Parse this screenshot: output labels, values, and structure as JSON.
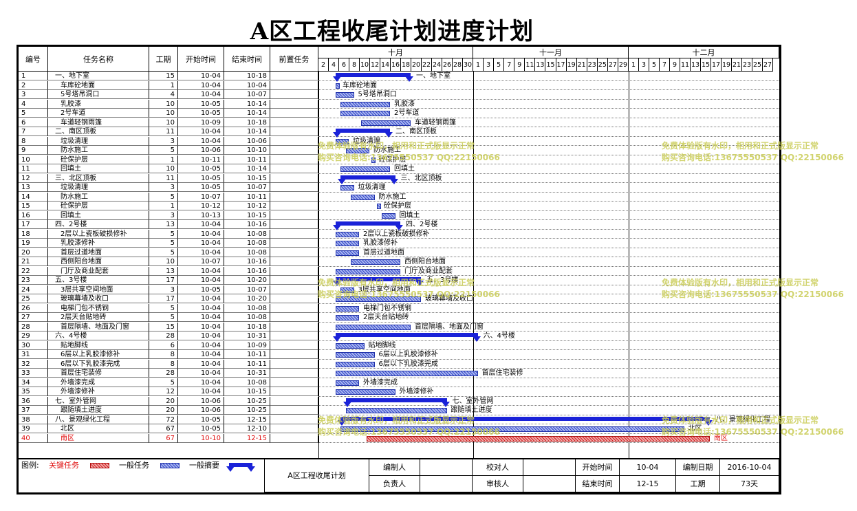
{
  "title": "A区工程收尾计划进度计划",
  "headers": {
    "id": "编号",
    "name": "任务名称",
    "duration": "工期",
    "start": "开始时间",
    "end": "结束时间",
    "pred": "前置任务"
  },
  "months": [
    "十月",
    "十一月",
    "十二月"
  ],
  "days": {
    "oct": [
      "2",
      "4",
      "6",
      "8",
      "10",
      "12",
      "14",
      "16",
      "18",
      "20",
      "22",
      "24",
      "26",
      "28",
      "30"
    ],
    "nov": [
      "1",
      "3",
      "5",
      "7",
      "9",
      "11",
      "13",
      "15",
      "17",
      "19",
      "21",
      "23",
      "25",
      "27",
      "29"
    ],
    "dec": [
      "1",
      "3",
      "5",
      "7",
      "9",
      "11",
      "13",
      "15",
      "17",
      "19",
      "21",
      "23",
      "25",
      "27"
    ]
  },
  "tasks": [
    {
      "id": "1",
      "name": "一、地下室",
      "dur": "15",
      "start": "10-04",
      "end": "10-18",
      "type": "summary",
      "s": 4,
      "e": 18
    },
    {
      "id": "2",
      "name": "车库砼地面",
      "dur": "1",
      "start": "10-04",
      "end": "10-04",
      "type": "task",
      "s": 4,
      "e": 4
    },
    {
      "id": "3",
      "name": "5号塔吊洞口",
      "dur": "4",
      "start": "10-04",
      "end": "10-07",
      "type": "task",
      "s": 4,
      "e": 7
    },
    {
      "id": "4",
      "name": "乳胶漆",
      "dur": "10",
      "start": "10-05",
      "end": "10-14",
      "type": "task",
      "s": 5,
      "e": 14
    },
    {
      "id": "5",
      "name": "2号车道",
      "dur": "10",
      "start": "10-05",
      "end": "10-14",
      "type": "task",
      "s": 5,
      "e": 14
    },
    {
      "id": "6",
      "name": "车道轻钢雨篷",
      "dur": "10",
      "start": "10-09",
      "end": "10-18",
      "type": "task",
      "s": 9,
      "e": 18
    },
    {
      "id": "7",
      "name": "二、南区顶板",
      "dur": "11",
      "start": "10-04",
      "end": "10-14",
      "type": "summary",
      "s": 4,
      "e": 14
    },
    {
      "id": "8",
      "name": "垃圾清理",
      "dur": "3",
      "start": "10-04",
      "end": "10-06",
      "type": "task",
      "s": 4,
      "e": 6
    },
    {
      "id": "9",
      "name": "防水施工",
      "dur": "5",
      "start": "10-06",
      "end": "10-10",
      "type": "task",
      "s": 6,
      "e": 10
    },
    {
      "id": "10",
      "name": "砼保护层",
      "dur": "1",
      "start": "10-11",
      "end": "10-11",
      "type": "task",
      "s": 11,
      "e": 11
    },
    {
      "id": "11",
      "name": "回填土",
      "dur": "10",
      "start": "10-05",
      "end": "10-14",
      "type": "task",
      "s": 5,
      "e": 14
    },
    {
      "id": "12",
      "name": "三、北区顶板",
      "dur": "11",
      "start": "10-05",
      "end": "10-15",
      "type": "summary",
      "s": 5,
      "e": 15
    },
    {
      "id": "13",
      "name": "垃圾清理",
      "dur": "3",
      "start": "10-05",
      "end": "10-07",
      "type": "task",
      "s": 5,
      "e": 7
    },
    {
      "id": "14",
      "name": "防水施工",
      "dur": "5",
      "start": "10-07",
      "end": "10-11",
      "type": "task",
      "s": 7,
      "e": 11
    },
    {
      "id": "15",
      "name": "砼保护层",
      "dur": "1",
      "start": "10-12",
      "end": "10-12",
      "type": "task",
      "s": 12,
      "e": 12
    },
    {
      "id": "16",
      "name": "回填土",
      "dur": "3",
      "start": "10-13",
      "end": "10-15",
      "type": "task",
      "s": 13,
      "e": 15
    },
    {
      "id": "17",
      "name": "四、2号楼",
      "dur": "13",
      "start": "10-04",
      "end": "10-16",
      "type": "summary",
      "s": 4,
      "e": 16
    },
    {
      "id": "18",
      "name": "2层以上瓷板破损修补",
      "dur": "5",
      "start": "10-04",
      "end": "10-08",
      "type": "task",
      "s": 4,
      "e": 8
    },
    {
      "id": "19",
      "name": "乳胶漆修补",
      "dur": "5",
      "start": "10-04",
      "end": "10-08",
      "type": "task",
      "s": 4,
      "e": 8
    },
    {
      "id": "20",
      "name": "首层过道地面",
      "dur": "5",
      "start": "10-04",
      "end": "10-08",
      "type": "task",
      "s": 4,
      "e": 8
    },
    {
      "id": "21",
      "name": "西侧阳台地面",
      "dur": "10",
      "start": "10-07",
      "end": "10-16",
      "type": "task",
      "s": 7,
      "e": 16
    },
    {
      "id": "22",
      "name": "门厅及商业配套",
      "dur": "13",
      "start": "10-04",
      "end": "10-16",
      "type": "task",
      "s": 4,
      "e": 16
    },
    {
      "id": "23",
      "name": "五、3号楼",
      "dur": "17",
      "start": "10-04",
      "end": "10-20",
      "type": "summary",
      "s": 4,
      "e": 20
    },
    {
      "id": "24",
      "name": "3层共享空间地面",
      "dur": "3",
      "start": "10-05",
      "end": "10-07",
      "type": "task",
      "s": 5,
      "e": 7
    },
    {
      "id": "25",
      "name": "玻璃幕墙及收口",
      "dur": "17",
      "start": "10-04",
      "end": "10-20",
      "type": "task",
      "s": 4,
      "e": 20
    },
    {
      "id": "26",
      "name": "电梯门包不锈钢",
      "dur": "5",
      "start": "10-04",
      "end": "10-08",
      "type": "task",
      "s": 4,
      "e": 8
    },
    {
      "id": "27",
      "name": "2层天台贴地砖",
      "dur": "5",
      "start": "10-04",
      "end": "10-08",
      "type": "task",
      "s": 4,
      "e": 8
    },
    {
      "id": "28",
      "name": "首层隔墙、地面及门窗",
      "dur": "15",
      "start": "10-04",
      "end": "10-18",
      "type": "task",
      "s": 4,
      "e": 18
    },
    {
      "id": "29",
      "name": "六、4号楼",
      "dur": "28",
      "start": "10-04",
      "end": "10-31",
      "type": "summary",
      "s": 4,
      "e": 31
    },
    {
      "id": "30",
      "name": "贴地脚线",
      "dur": "6",
      "start": "10-04",
      "end": "10-09",
      "type": "task",
      "s": 4,
      "e": 9
    },
    {
      "id": "31",
      "name": "6层以上乳胶漆修补",
      "dur": "8",
      "start": "10-04",
      "end": "10-11",
      "type": "task",
      "s": 4,
      "e": 11
    },
    {
      "id": "32",
      "name": "6层以下乳胶漆完成",
      "dur": "8",
      "start": "10-04",
      "end": "10-11",
      "type": "task",
      "s": 4,
      "e": 11
    },
    {
      "id": "33",
      "name": "首层住宅装修",
      "dur": "28",
      "start": "10-04",
      "end": "10-31",
      "type": "task",
      "s": 4,
      "e": 31
    },
    {
      "id": "34",
      "name": "外墙漆完成",
      "dur": "5",
      "start": "10-04",
      "end": "10-08",
      "type": "task",
      "s": 4,
      "e": 8
    },
    {
      "id": "35",
      "name": "外墙漆修补",
      "dur": "12",
      "start": "10-04",
      "end": "10-15",
      "type": "task",
      "s": 4,
      "e": 15
    },
    {
      "id": "36",
      "name": "七、室外管网",
      "dur": "20",
      "start": "10-06",
      "end": "10-25",
      "type": "summary",
      "s": 6,
      "e": 25
    },
    {
      "id": "37",
      "name": "跟随填土进度",
      "dur": "20",
      "start": "10-06",
      "end": "10-25",
      "type": "task",
      "s": 6,
      "e": 25
    },
    {
      "id": "38",
      "name": "八、景观绿化工程",
      "dur": "72",
      "start": "10-05",
      "end": "12-15",
      "type": "summary",
      "s": 5,
      "e": 76
    },
    {
      "id": "39",
      "name": "北区",
      "dur": "67",
      "start": "10-05",
      "end": "12-10",
      "type": "task",
      "s": 5,
      "e": 71
    },
    {
      "id": "40",
      "name": "南区",
      "dur": "67",
      "start": "10-10",
      "end": "12-15",
      "type": "crit",
      "s": 10,
      "e": 76
    }
  ],
  "bar_labels": {
    "1": "一、地下室",
    "2": "车库砼地面",
    "3": "5号塔吊洞口",
    "4": "乳胶漆",
    "5": "2号车道",
    "6": "车道轻钢雨篷",
    "7": "二、南区顶板",
    "8": "垃圾清理",
    "9": "防水施工",
    "10": "砼保护层",
    "11": "回填土",
    "12": "三、北区顶板",
    "13": "垃圾清理",
    "14": "防水施工",
    "15": "砼保护层",
    "16": "回填土",
    "17": "四、2号楼",
    "18": "2层以上瓷板破损修补",
    "19": "乳胶漆修补",
    "20": "首层过道地面",
    "21": "西侧阳台地面",
    "22": "门厅及商业配套",
    "23": "五、3号楼",
    "24": "3层共享空间地面",
    "25": "玻璃幕墙及收口",
    "26": "电梯门包不锈钢",
    "27": "2层天台贴地砖",
    "28": "首层隔墙、地面及门窗",
    "29": "六、4号楼",
    "30": "贴地脚线",
    "31": "6层以上乳胶漆修补",
    "32": "6层以下乳胶漆完成",
    "33": "首层住宅装修",
    "34": "外墙漆完成",
    "35": "外墙漆修补",
    "36": "七、室外管网",
    "37": "跟随填土进度",
    "38": "八、景观绿化工程",
    "39": "北区",
    "40": "南区"
  },
  "watermark": {
    "line1": "免费体验版有水印，相用和正式版显示正常",
    "line2": "购买咨询电话:13675550537 QQ:22150066"
  },
  "legend": {
    "label": "图例:",
    "critical": "关键任务",
    "normal": "一般任务",
    "summary": "一般摘要"
  },
  "footer": {
    "project": "A区工程收尾计划",
    "editor_label": "编制人",
    "editor_value": "",
    "checker_label": "校对人",
    "checker_value": "",
    "start_label": "开始时间",
    "start_value": "10-04",
    "date_label": "编制日期",
    "date_value": "2016-10-04",
    "owner_label": "负责人",
    "owner_value": "",
    "reviewer_label": "审核人",
    "reviewer_value": "",
    "end_label": "结束时间",
    "end_value": "12-15",
    "duration_label": "工期",
    "duration_value": "73天"
  },
  "colors": {
    "summary": "#1a22d8",
    "task": "#3348c9",
    "critical": "#d02020",
    "critical_text": "#e01010",
    "watermark": "#c9cc55"
  }
}
